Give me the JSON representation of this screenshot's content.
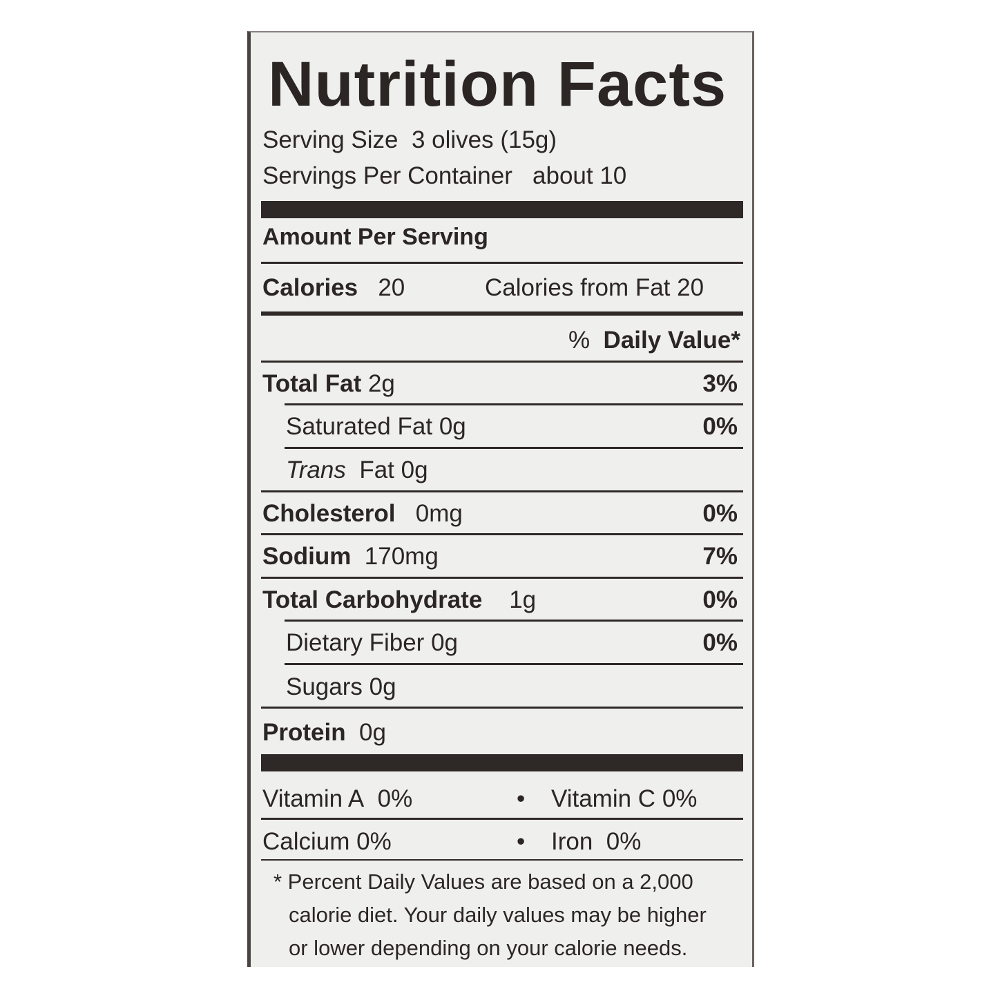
{
  "title": "Nutrition Facts",
  "serving_size": {
    "label": "Serving Size",
    "value": "3 olives (15g)"
  },
  "servings_per_container": {
    "label": "Servings Per Container",
    "value": "about 10"
  },
  "amount_per_serving": "Amount Per Serving",
  "calories": {
    "label": "Calories",
    "value": "20",
    "from_fat_label": "Calories from Fat",
    "from_fat_value": "20"
  },
  "daily_value_header": {
    "pct": "%",
    "label": "Daily Value*"
  },
  "nutrients": [
    {
      "label": "Total Fat",
      "amount": "2g",
      "dv": "3%"
    },
    {
      "label": "Saturated Fat",
      "amount": "0g",
      "dv": "0%"
    },
    {
      "label": "Trans",
      "label2": "Fat",
      "amount": "0g",
      "dv": ""
    },
    {
      "label": "Cholesterol",
      "amount": "0mg",
      "dv": "0%"
    },
    {
      "label": "Sodium",
      "amount": "170mg",
      "dv": "7%"
    },
    {
      "label": "Total Carbohydrate",
      "amount": "1g",
      "dv": "0%"
    },
    {
      "label": "Dietary Fiber",
      "amount": "0g",
      "dv": "0%"
    },
    {
      "label": "Sugars",
      "amount": "0g",
      "dv": ""
    },
    {
      "label": "Protein",
      "amount": "0g",
      "dv": ""
    }
  ],
  "vitamins": [
    {
      "label": "Vitamin A",
      "value": "0%"
    },
    {
      "label": "Vitamin C",
      "value": "0%"
    },
    {
      "label": "Calcium",
      "value": "0%"
    },
    {
      "label": "Iron",
      "value": "0%"
    }
  ],
  "bullet": "•",
  "footnote": [
    "* Percent Daily Values are based on a 2,000",
    "calorie diet. Your daily values may be higher",
    "or lower depending on your calorie needs."
  ]
}
